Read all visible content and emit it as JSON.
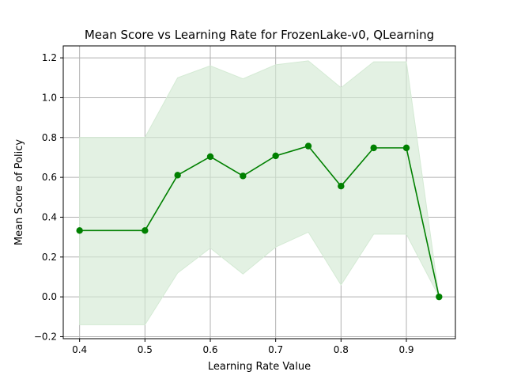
{
  "chart_data": {
    "type": "line",
    "title": "Mean Score vs Learning Rate for FrozenLake-v0, QLearning",
    "xlabel": "Learning Rate Value",
    "ylabel": "Mean Score of Policy",
    "xlim": [
      0.375,
      0.975
    ],
    "ylim": [
      -0.21,
      1.26
    ],
    "xticks": [
      0.4,
      0.5,
      0.6,
      0.7,
      0.8,
      0.9
    ],
    "xtick_labels": [
      "0.4",
      "0.5",
      "0.6",
      "0.7",
      "0.8",
      "0.9"
    ],
    "yticks": [
      -0.2,
      0.0,
      0.2,
      0.4,
      0.6,
      0.8,
      1.0,
      1.2
    ],
    "ytick_labels": [
      "−0.2",
      "0.0",
      "0.2",
      "0.4",
      "0.6",
      "0.8",
      "1.0",
      "1.2"
    ],
    "grid": true,
    "x": [
      0.4,
      0.5,
      0.55,
      0.6,
      0.65,
      0.7,
      0.75,
      0.8,
      0.85,
      0.9,
      0.95
    ],
    "series": [
      {
        "values": [
          0.333,
          0.333,
          0.611,
          0.704,
          0.607,
          0.708,
          0.757,
          0.556,
          0.748,
          0.748,
          0.0
        ],
        "color": "#008000",
        "band_lower": [
          -0.14,
          -0.14,
          0.12,
          0.245,
          0.115,
          0.25,
          0.325,
          0.06,
          0.315,
          0.315,
          0.0
        ],
        "band_upper": [
          0.8,
          0.8,
          1.1,
          1.16,
          1.095,
          1.165,
          1.185,
          1.05,
          1.18,
          1.18,
          0.0
        ],
        "band_color": "#d4ead4"
      }
    ]
  }
}
